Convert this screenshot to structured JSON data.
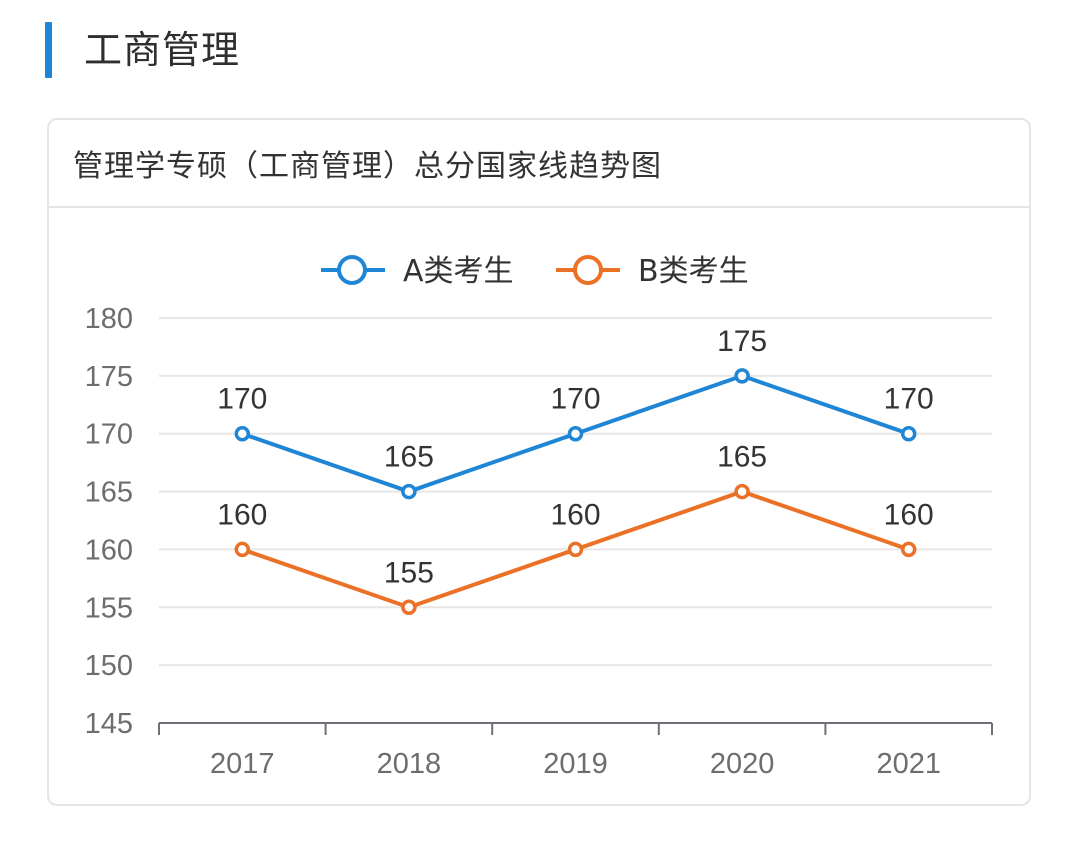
{
  "section": {
    "title": "工商管理",
    "accent_color": "#1f86d6"
  },
  "card": {
    "title": "管理学专硕（工商管理）总分国家线趋势图"
  },
  "chart_data": {
    "type": "line",
    "title": "管理学专硕（工商管理）总分国家线趋势图",
    "categories": [
      "2017",
      "2018",
      "2019",
      "2020",
      "2021"
    ],
    "series": [
      {
        "name": "A类考生",
        "color": "#1f86d6",
        "values": [
          170,
          165,
          170,
          175,
          170
        ]
      },
      {
        "name": "B类考生",
        "color": "#ea7125",
        "values": [
          160,
          155,
          160,
          165,
          160
        ]
      }
    ],
    "ylim": [
      145,
      180
    ],
    "yticks": [
      "145",
      "150",
      "155",
      "160",
      "165",
      "170",
      "175",
      "180"
    ],
    "grid": true,
    "legend_position": "top-center",
    "data_labels": true
  }
}
